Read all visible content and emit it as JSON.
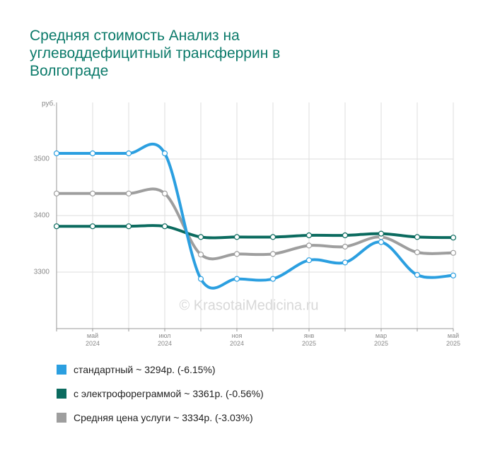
{
  "chart_data": {
    "type": "line",
    "title": "Средняя стоимость Анализ на углеводдефицитный трансферрин в Волгограде",
    "y_unit": "руб.",
    "watermark": "© KrasotaiMedicina.ru",
    "categories": [
      null,
      "май\n2024",
      null,
      "июл\n2024",
      null,
      "ноя\n2024",
      null,
      "янв\n2025",
      null,
      "мар\n2025",
      null,
      "май\n2025"
    ],
    "series": [
      {
        "name": "стандартный ~ 3294р. (-6.15%)",
        "color": "#2b9fe0",
        "values": [
          3510,
          3510,
          3510,
          3510,
          3288,
          3288,
          3288,
          3321,
          3317,
          3353,
          3295,
          3294
        ]
      },
      {
        "name": "с электрофореграммой ~ 3361р. (-0.56%)",
        "color": "#0b6b5f",
        "values": [
          3381,
          3381,
          3381,
          3381,
          3362,
          3362,
          3362,
          3365,
          3365,
          3368,
          3362,
          3361
        ]
      },
      {
        "name": "Средняя цена услуги ~ 3334р. (-3.03%)",
        "color": "#9e9e9e",
        "values": [
          3439,
          3439,
          3439,
          3439,
          3331,
          3332,
          3332,
          3347,
          3345,
          3362,
          3335,
          3334
        ]
      }
    ],
    "ylim": [
      3200,
      3600
    ],
    "yticks": [
      3300,
      3400,
      3500
    ],
    "grid": true
  }
}
